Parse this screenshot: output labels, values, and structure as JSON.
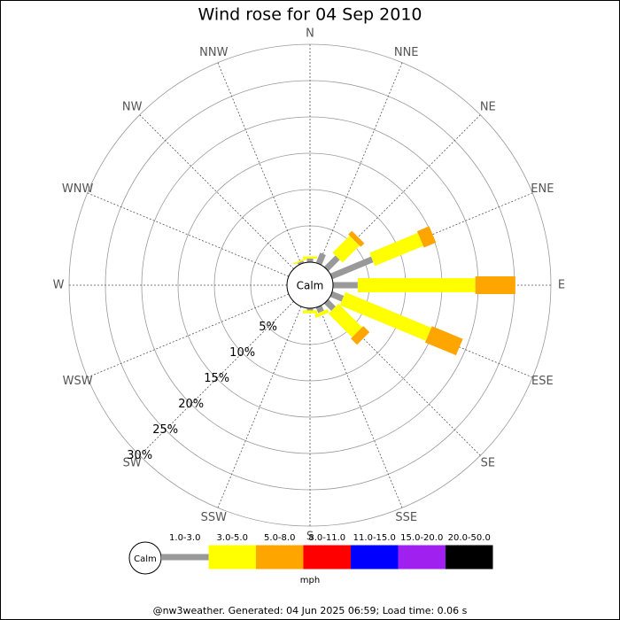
{
  "chart_data": {
    "type": "windrose",
    "title": "Wind rose for 04 Sep 2010",
    "directions": [
      "N",
      "NNE",
      "NE",
      "ENE",
      "E",
      "ESE",
      "SE",
      "SSE",
      "S",
      "SSW",
      "SW",
      "WSW",
      "W",
      "WNW",
      "NW",
      "NNW"
    ],
    "calm_label": "Calm",
    "units": "mph",
    "rlim": [
      0,
      30
    ],
    "rticks": [
      {
        "value": 5,
        "label": "5%"
      },
      {
        "value": 10,
        "label": "10%"
      },
      {
        "value": 15,
        "label": "15%"
      },
      {
        "value": 20,
        "label": "20%"
      },
      {
        "value": 25,
        "label": "25%"
      },
      {
        "value": 30,
        "label": "30%"
      }
    ],
    "series": [
      {
        "name": "1.0-3.0",
        "color": "#999999",
        "values": [
          0.5,
          1.5,
          2.2,
          6.1,
          3.4,
          1.7,
          1.4,
          0.8,
          0.3,
          0,
          0,
          0,
          0,
          0,
          0,
          0.3
        ]
      },
      {
        "name": "3.0-5.0",
        "color": "#ffff00",
        "values": [
          0.3,
          0,
          3.3,
          7.2,
          16.2,
          12.8,
          4.6,
          0.5,
          0.4,
          0,
          0,
          0,
          0,
          0,
          0,
          0.2
        ]
      },
      {
        "name": "5.0-8.0",
        "color": "#ffa500",
        "values": [
          0,
          0,
          0.7,
          1.8,
          5.5,
          4.6,
          1.2,
          0,
          0,
          0,
          0,
          0,
          0,
          0,
          0,
          0
        ]
      },
      {
        "name": "8.0-11.0",
        "color": "#ff0000",
        "values": [
          0,
          0,
          0,
          0,
          0,
          0,
          0,
          0,
          0,
          0,
          0,
          0,
          0,
          0,
          0,
          0
        ]
      },
      {
        "name": "11.0-15.0",
        "color": "#0000ff",
        "values": [
          0,
          0,
          0,
          0,
          0,
          0,
          0,
          0,
          0,
          0,
          0,
          0,
          0,
          0,
          0,
          0
        ]
      },
      {
        "name": "15.0-20.0",
        "color": "#a020f0",
        "values": [
          0,
          0,
          0,
          0,
          0,
          0,
          0,
          0,
          0,
          0,
          0,
          0,
          0,
          0,
          0,
          0
        ]
      },
      {
        "name": "20.0-50.0",
        "color": "#000000",
        "values": [
          0,
          0,
          0,
          0,
          0,
          0,
          0,
          0,
          0,
          0,
          0,
          0,
          0,
          0,
          0,
          0
        ]
      }
    ],
    "footer": "@nw3weather. Generated: 04 Jun 2025 06:59; Load time: 0.06 s"
  }
}
